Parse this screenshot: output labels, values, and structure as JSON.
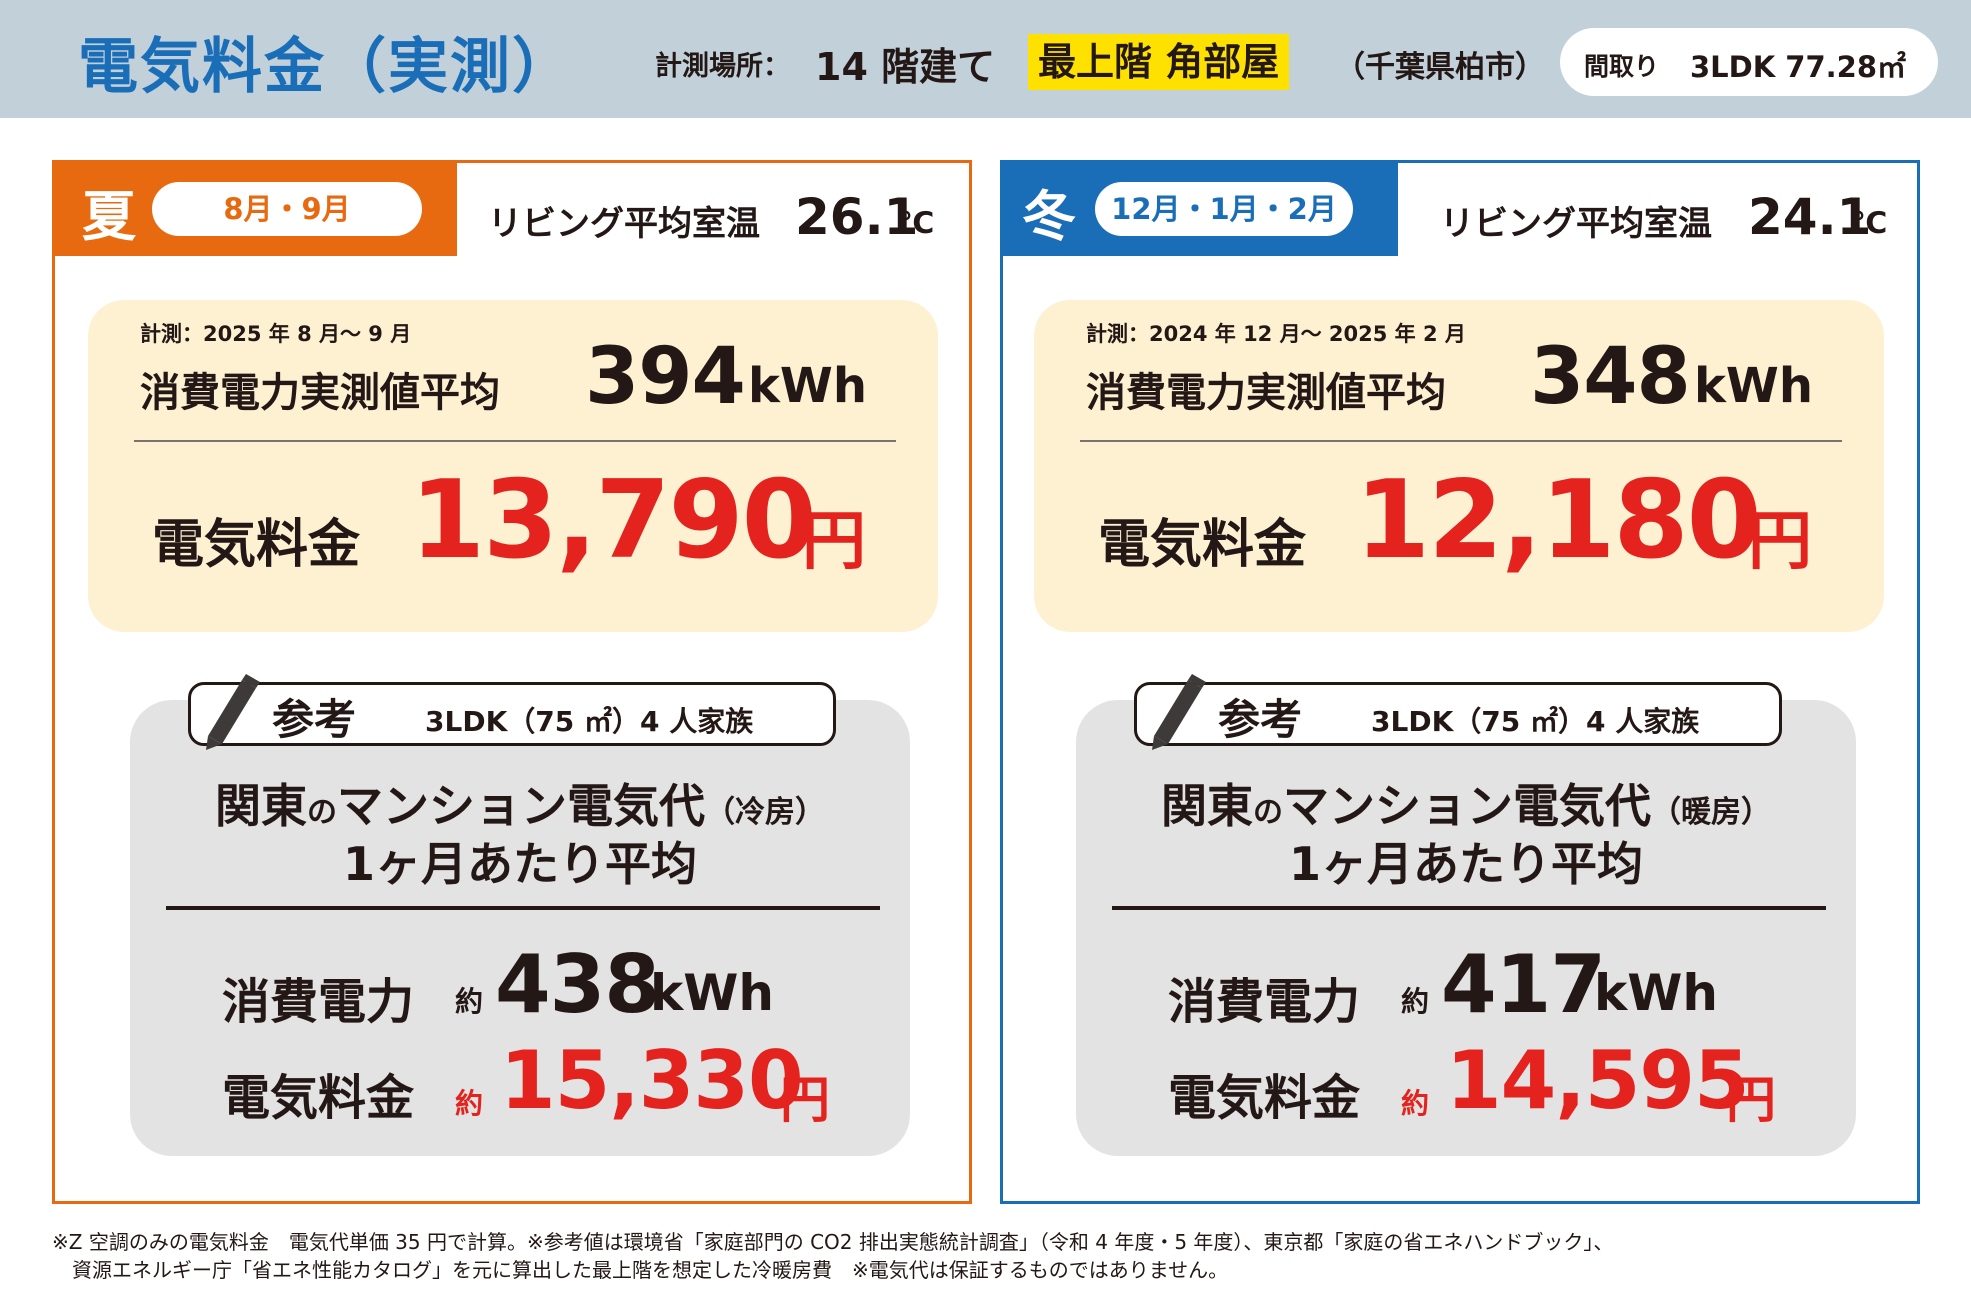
{
  "header": {
    "title": "電気料金（実測）",
    "location_label": "計測場所：",
    "location_value": "14 階建て",
    "location_highlight": "最上階 角部屋",
    "location_pref": "（千葉県柏市）",
    "madori_label": "間取り",
    "madori_value": "3LDK  77.28㎡"
  },
  "summer": {
    "season": "夏",
    "months": "8月・9月",
    "temp_label": "リビング平均室温",
    "temp_value": "26.1",
    "temp_unit": "℃",
    "period": "計測：2025 年 8 月～ 9 月",
    "consumption_label": "消費電力実測値平均",
    "consumption_value": "394",
    "consumption_unit": "kWh",
    "price_label": "電気料金",
    "price_value": "13,790",
    "price_unit": "円",
    "ref_title": "参考",
    "ref_family": "3LDK（75 ㎡）4 人家族",
    "ref_heading_a": "関東",
    "ref_heading_no": "の",
    "ref_heading_b": "マンション電気代",
    "ref_heading_mode": "（冷房）",
    "ref_heading2": "1ヶ月あたり平均",
    "ref_cons_label": "消費電力",
    "ref_approx": "約",
    "ref_cons_value": "438",
    "ref_cons_unit": "kWh",
    "ref_price_label": "電気料金",
    "ref_price_value": "15,330",
    "ref_price_unit": "円"
  },
  "winter": {
    "season": "冬",
    "months": "12月・1月・2月",
    "temp_label": "リビング平均室温",
    "temp_value": "24.1",
    "temp_unit": "℃",
    "period": "計測：2024 年 12 月～ 2025 年 2 月",
    "consumption_label": "消費電力実測値平均",
    "consumption_value": "348",
    "consumption_unit": "kWh",
    "price_label": "電気料金",
    "price_value": "12,180",
    "price_unit": "円",
    "ref_title": "参考",
    "ref_family": "3LDK（75 ㎡）4 人家族",
    "ref_heading_a": "関東",
    "ref_heading_no": "の",
    "ref_heading_b": "マンション電気代",
    "ref_heading_mode": "（暖房）",
    "ref_heading2": "1ヶ月あたり平均",
    "ref_cons_label": "消費電力",
    "ref_approx": "約",
    "ref_cons_value": "417",
    "ref_cons_unit": "kWh",
    "ref_price_label": "電気料金",
    "ref_price_value": "14,595",
    "ref_price_unit": "円"
  },
  "footnote": {
    "line1": "※Z 空調のみの電気料金　電気代単価 35 円で計算。※参考値は環境省「家庭部門の CO2 排出実態統計調査」（令和 4 年度・5 年度）、東京都「家庭の省エネハンドブック」、",
    "line2": "　資源エネルギー庁「省エネ性能カタログ」を元に算出した最上階を想定した冷暖房費　※電気代は保証するものではありません。"
  },
  "colors": {
    "header_bg": "#c2d0d9",
    "title_blue": "#1a6eb8",
    "summer_orange": "#e86a10",
    "winter_blue": "#1a6eb8",
    "price_red": "#e4231e",
    "highlight_yellow": "#ffe100",
    "measure_box_bg": "#fdf1d2",
    "reference_box_bg": "#e3e3e3"
  },
  "icons": {
    "reference_tag": "pencil-icon"
  }
}
